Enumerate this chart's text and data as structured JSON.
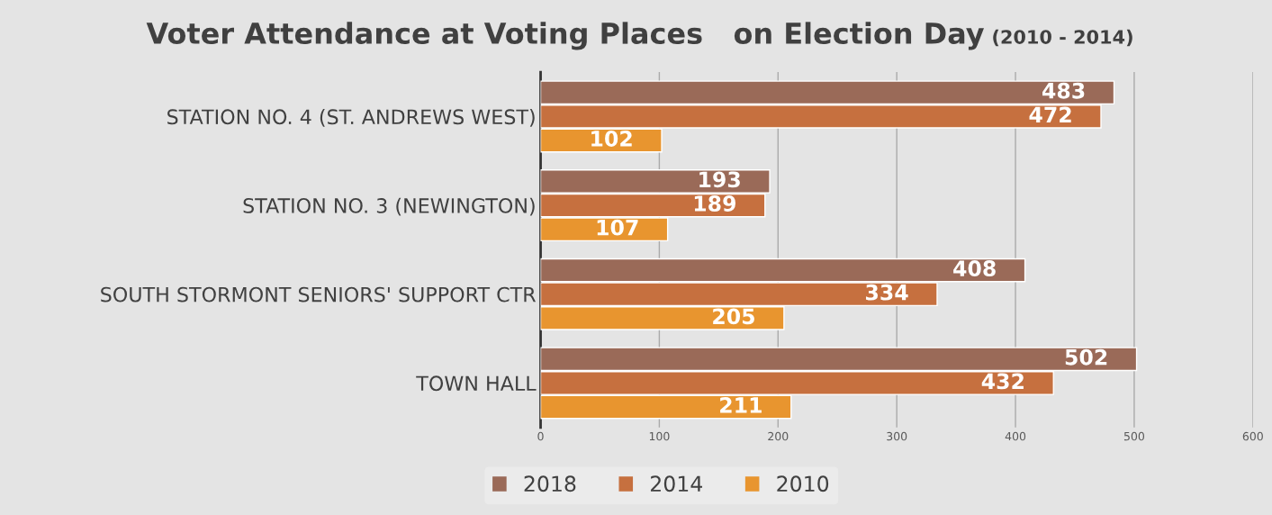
{
  "chart_data": {
    "type": "bar",
    "orientation": "horizontal",
    "title": "Voter Attendance at Voting Places   on Election Day",
    "subtitle": "(2010 - 2014)",
    "categories": [
      "STATION NO. 4 (ST. ANDREWS WEST)",
      "STATION NO. 3 (NEWINGTON)",
      "SOUTH STORMONT SENIORS' SUPPORT CTR",
      "TOWN HALL"
    ],
    "series": [
      {
        "name": "2018",
        "color": "#9a6a58",
        "values": [
          483,
          193,
          408,
          502
        ]
      },
      {
        "name": "2014",
        "color": "#c6703f",
        "values": [
          472,
          189,
          334,
          432
        ]
      },
      {
        "name": "2010",
        "color": "#e8952f",
        "values": [
          102,
          107,
          205,
          211
        ]
      }
    ],
    "xlim": [
      0,
      600
    ],
    "xticks": [
      0,
      100,
      200,
      300,
      400,
      500,
      600
    ],
    "grid": "x",
    "legend": "bottom",
    "data_labels": true
  }
}
